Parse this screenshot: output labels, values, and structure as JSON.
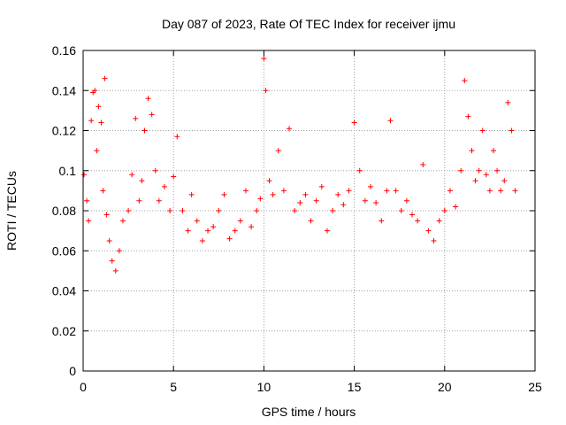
{
  "chart_data": {
    "type": "scatter",
    "title": "Day 087 of 2023, Rate Of TEC Index for receiver ijmu",
    "xlabel": "GPS time / hours",
    "ylabel": "ROTI / TECUs",
    "xlim": [
      0,
      25
    ],
    "ylim": [
      0,
      0.16
    ],
    "x_ticks": [
      0,
      5,
      10,
      15,
      20,
      25
    ],
    "x_tick_labels": [
      "0",
      "5",
      "10",
      "15",
      "20",
      "25"
    ],
    "y_ticks": [
      0,
      0.02,
      0.04,
      0.06,
      0.08,
      0.1,
      0.12,
      0.14,
      0.16
    ],
    "y_tick_labels": [
      "0",
      "0.02",
      "0.04",
      "0.06",
      "0.08",
      "0.1",
      "0.12",
      "0.14",
      "0.16"
    ],
    "grid": true,
    "legend": "none",
    "marker": "+",
    "color": "#ff0000",
    "series": [
      {
        "x": [
          0.05,
          0.2,
          0.3,
          0.45,
          0.55,
          0.65,
          0.75,
          0.85,
          1.0,
          1.1,
          1.2,
          1.3,
          1.45,
          1.6,
          1.8,
          2.0,
          2.2,
          2.5,
          2.7,
          2.9,
          3.1,
          3.25,
          3.4,
          3.6,
          3.8,
          4.0,
          4.2,
          4.5,
          4.8,
          5.0,
          5.2,
          5.5,
          5.8,
          6.0,
          6.3,
          6.6,
          6.9,
          7.2,
          7.5,
          7.8,
          8.1,
          8.4,
          8.7,
          9.0,
          9.3,
          9.6,
          9.8,
          10.0,
          10.1,
          10.3,
          10.5,
          10.8,
          11.1,
          11.4,
          11.7,
          12.0,
          12.3,
          12.6,
          12.9,
          13.2,
          13.5,
          13.8,
          14.1,
          14.4,
          14.7,
          15.0,
          15.3,
          15.6,
          15.9,
          16.2,
          16.5,
          16.8,
          17.0,
          17.3,
          17.6,
          17.9,
          18.2,
          18.5,
          18.8,
          19.1,
          19.4,
          19.7,
          20.0,
          20.3,
          20.6,
          20.9,
          21.1,
          21.3,
          21.5,
          21.7,
          21.9,
          22.1,
          22.3,
          22.5,
          22.7,
          22.9,
          23.1,
          23.3,
          23.5,
          23.7,
          23.9
        ],
        "y": [
          0.098,
          0.085,
          0.075,
          0.125,
          0.139,
          0.14,
          0.11,
          0.132,
          0.124,
          0.09,
          0.146,
          0.078,
          0.065,
          0.055,
          0.05,
          0.06,
          0.075,
          0.08,
          0.098,
          0.126,
          0.085,
          0.095,
          0.12,
          0.136,
          0.128,
          0.1,
          0.085,
          0.092,
          0.08,
          0.097,
          0.117,
          0.08,
          0.07,
          0.088,
          0.075,
          0.065,
          0.07,
          0.072,
          0.08,
          0.088,
          0.066,
          0.07,
          0.075,
          0.09,
          0.072,
          0.08,
          0.086,
          0.156,
          0.14,
          0.095,
          0.088,
          0.11,
          0.09,
          0.121,
          0.08,
          0.084,
          0.088,
          0.075,
          0.085,
          0.092,
          0.07,
          0.08,
          0.088,
          0.083,
          0.09,
          0.124,
          0.1,
          0.085,
          0.092,
          0.084,
          0.075,
          0.09,
          0.125,
          0.09,
          0.08,
          0.085,
          0.078,
          0.075,
          0.103,
          0.07,
          0.065,
          0.075,
          0.08,
          0.09,
          0.082,
          0.1,
          0.145,
          0.127,
          0.11,
          0.095,
          0.1,
          0.12,
          0.098,
          0.09,
          0.11,
          0.1,
          0.09,
          0.095,
          0.134,
          0.12,
          0.09
        ]
      }
    ]
  }
}
